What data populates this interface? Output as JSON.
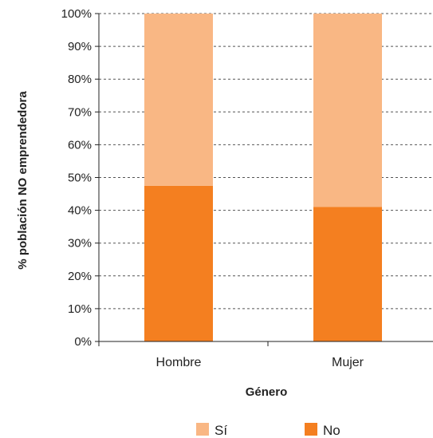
{
  "chart_data": {
    "type": "bar",
    "stacked": true,
    "categories": [
      "Hombre",
      "Mujer"
    ],
    "series": [
      {
        "name": "No",
        "values": [
          47.5,
          41
        ],
        "color": "#f47f20"
      },
      {
        "name": "Sí",
        "values": [
          52.5,
          59
        ],
        "color": "#f9b784"
      }
    ],
    "xlabel": "Género",
    "ylabel": "% población NO emprendedora",
    "ylim": [
      0,
      100
    ],
    "yticks": [
      "0%",
      "10%",
      "20%",
      "30%",
      "40%",
      "50%",
      "60%",
      "70%",
      "80%",
      "90%",
      "100%"
    ],
    "grid": "horizontal dashed",
    "legend": {
      "position": "bottom",
      "order": [
        "Sí",
        "No"
      ]
    }
  }
}
